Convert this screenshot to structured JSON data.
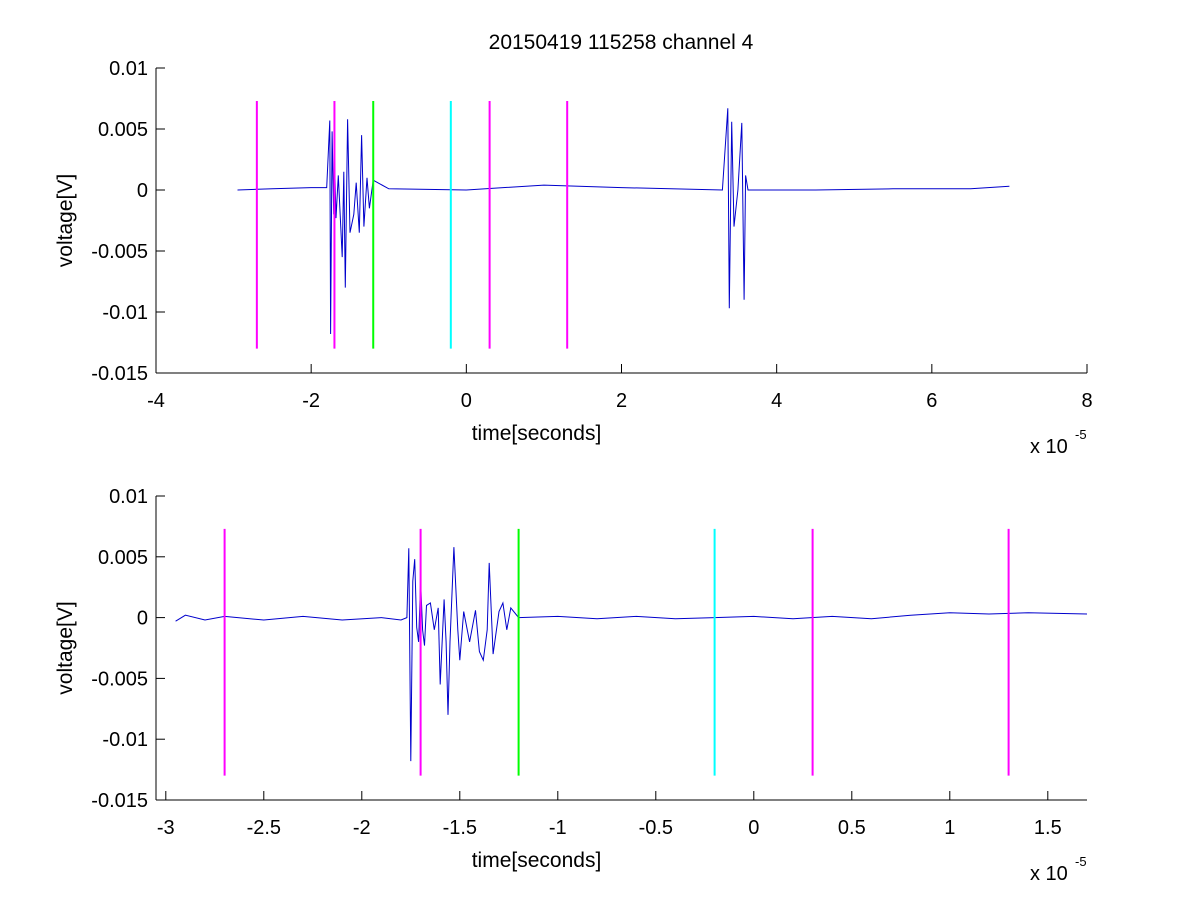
{
  "figure": {
    "title": "20150419 115258 channel 4"
  },
  "chart_data": [
    {
      "type": "line",
      "title": "20150419 115258 channel 4",
      "xlabel": "time[seconds]",
      "ylabel": "voltage[V]",
      "x_multiplier_base": "x 10",
      "x_multiplier_exponent": "-5",
      "xlim": [
        -4,
        8
      ],
      "ylim": [
        -0.015,
        0.01
      ],
      "xticks": [
        -4,
        -2,
        0,
        2,
        4,
        6,
        8
      ],
      "xtick_labels": [
        "-4",
        "-2",
        "0",
        "2",
        "4",
        "6",
        "8"
      ],
      "yticks": [
        -0.015,
        -0.01,
        -0.005,
        0,
        0.005,
        0.01
      ],
      "ytick_labels": [
        "-0.015",
        "-0.01",
        "-0.005",
        "0",
        "0.005",
        "0.01"
      ],
      "grid": false,
      "series": [
        {
          "color": "#0000cc",
          "points": [
            [
              -2.95,
              0.0
            ],
            [
              -2.5,
              0.0001
            ],
            [
              -2.0,
              0.0002
            ],
            [
              -1.8,
              0.0002
            ],
            [
              -1.76,
              0.0057
            ],
            [
              -1.75,
              -0.0118
            ],
            [
              -1.73,
              0.0048
            ],
            [
              -1.71,
              -0.002
            ],
            [
              -1.7,
              0.003
            ],
            [
              -1.68,
              -0.0023
            ],
            [
              -1.65,
              0.0012
            ],
            [
              -1.6,
              -0.0055
            ],
            [
              -1.58,
              0.0015
            ],
            [
              -1.56,
              -0.008
            ],
            [
              -1.53,
              0.0058
            ],
            [
              -1.5,
              -0.0035
            ],
            [
              -1.45,
              -0.002
            ],
            [
              -1.42,
              0.0006
            ],
            [
              -1.38,
              -0.0035
            ],
            [
              -1.35,
              0.0045
            ],
            [
              -1.32,
              -0.003
            ],
            [
              -1.28,
              0.001
            ],
            [
              -1.25,
              -0.0015
            ],
            [
              -1.2,
              0.0008
            ],
            [
              -1.0,
              0.0001
            ],
            [
              0.0,
              0.0
            ],
            [
              1.0,
              0.0004
            ],
            [
              2.0,
              0.0002
            ],
            [
              3.3,
              0.0
            ],
            [
              3.37,
              0.0067
            ],
            [
              3.39,
              -0.0097
            ],
            [
              3.42,
              0.0056
            ],
            [
              3.45,
              -0.003
            ],
            [
              3.5,
              0.0
            ],
            [
              3.55,
              0.0055
            ],
            [
              3.58,
              -0.009
            ],
            [
              3.6,
              0.0012
            ],
            [
              3.63,
              0.0
            ],
            [
              4.5,
              0.0
            ],
            [
              5.5,
              0.0001
            ],
            [
              6.5,
              0.0001
            ],
            [
              7.0,
              0.0003
            ]
          ]
        }
      ],
      "markers": [
        {
          "x": -2.7,
          "color": "#ff00ff"
        },
        {
          "x": -1.7,
          "color": "#ff00ff"
        },
        {
          "x": -1.2,
          "color": "#00ff00"
        },
        {
          "x": -0.2,
          "color": "#00ffff"
        },
        {
          "x": 0.3,
          "color": "#ff00ff"
        },
        {
          "x": 1.3,
          "color": "#ff00ff"
        }
      ],
      "marker_range": [
        -0.013,
        0.0073
      ]
    },
    {
      "type": "line",
      "title": "",
      "xlabel": "time[seconds]",
      "ylabel": "voltage[V]",
      "x_multiplier_base": "x 10",
      "x_multiplier_exponent": "-5",
      "xlim": [
        -3.05,
        1.7
      ],
      "ylim": [
        -0.015,
        0.01
      ],
      "xticks": [
        -3,
        -2.5,
        -2,
        -1.5,
        -1,
        -0.5,
        0,
        0.5,
        1,
        1.5
      ],
      "xtick_labels": [
        "-3",
        "-2.5",
        "-2",
        "-1.5",
        "-1",
        "-0.5",
        "0",
        "0.5",
        "1",
        "1.5"
      ],
      "yticks": [
        -0.015,
        -0.01,
        -0.005,
        0,
        0.005,
        0.01
      ],
      "ytick_labels": [
        "-0.015",
        "-0.01",
        "-0.005",
        "0",
        "0.005",
        "0.01"
      ],
      "grid": false,
      "series": [
        {
          "color": "#0000cc",
          "points": [
            [
              -2.95,
              -0.0003
            ],
            [
              -2.9,
              0.0002
            ],
            [
              -2.8,
              -0.0002
            ],
            [
              -2.7,
              0.0001
            ],
            [
              -2.5,
              -0.0002
            ],
            [
              -2.3,
              0.0001
            ],
            [
              -2.1,
              -0.0002
            ],
            [
              -1.9,
              0.0
            ],
            [
              -1.8,
              -0.0002
            ],
            [
              -1.77,
              0.0
            ],
            [
              -1.76,
              0.0057
            ],
            [
              -1.75,
              -0.0118
            ],
            [
              -1.74,
              0.003
            ],
            [
              -1.73,
              0.0048
            ],
            [
              -1.72,
              -0.0008
            ],
            [
              -1.71,
              -0.002
            ],
            [
              -1.7,
              0.003
            ],
            [
              -1.69,
              -0.001
            ],
            [
              -1.68,
              -0.0023
            ],
            [
              -1.67,
              0.001
            ],
            [
              -1.65,
              0.0012
            ],
            [
              -1.63,
              -0.001
            ],
            [
              -1.61,
              0.0008
            ],
            [
              -1.6,
              -0.0055
            ],
            [
              -1.58,
              0.0015
            ],
            [
              -1.57,
              -0.002
            ],
            [
              -1.56,
              -0.008
            ],
            [
              -1.55,
              -0.002
            ],
            [
              -1.53,
              0.0058
            ],
            [
              -1.51,
              -0.001
            ],
            [
              -1.5,
              -0.0035
            ],
            [
              -1.48,
              0.0005
            ],
            [
              -1.45,
              -0.002
            ],
            [
              -1.42,
              0.0006
            ],
            [
              -1.4,
              -0.0028
            ],
            [
              -1.38,
              -0.0035
            ],
            [
              -1.36,
              -0.001
            ],
            [
              -1.35,
              0.0045
            ],
            [
              -1.33,
              -0.003
            ],
            [
              -1.3,
              0.0005
            ],
            [
              -1.28,
              0.0012
            ],
            [
              -1.26,
              -0.001
            ],
            [
              -1.24,
              0.0008
            ],
            [
              -1.2,
              0.0
            ],
            [
              -1.0,
              0.0001
            ],
            [
              -0.8,
              -0.0001
            ],
            [
              -0.6,
              0.0001
            ],
            [
              -0.4,
              -0.0001
            ],
            [
              -0.2,
              0.0
            ],
            [
              0.0,
              0.0001
            ],
            [
              0.2,
              -0.0001
            ],
            [
              0.4,
              0.0001
            ],
            [
              0.6,
              -0.0001
            ],
            [
              0.8,
              0.0002
            ],
            [
              1.0,
              0.0004
            ],
            [
              1.2,
              0.0003
            ],
            [
              1.4,
              0.0004
            ],
            [
              1.7,
              0.0003
            ]
          ]
        }
      ],
      "markers": [
        {
          "x": -2.7,
          "color": "#ff00ff"
        },
        {
          "x": -1.7,
          "color": "#ff00ff"
        },
        {
          "x": -1.2,
          "color": "#00ff00"
        },
        {
          "x": -0.2,
          "color": "#00ffff"
        },
        {
          "x": 0.3,
          "color": "#ff00ff"
        },
        {
          "x": 1.3,
          "color": "#ff00ff"
        }
      ],
      "marker_range": [
        -0.013,
        0.0073
      ]
    }
  ]
}
